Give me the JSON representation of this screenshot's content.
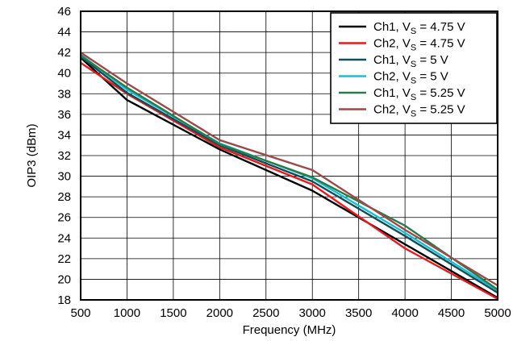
{
  "chart_data": {
    "type": "line",
    "xlabel": "Frequency (MHz)",
    "ylabel": "OIP3 (dBm)",
    "xlim": [
      500,
      5000
    ],
    "ylim": [
      18,
      46
    ],
    "x_ticks": [
      500,
      1000,
      1500,
      2000,
      2500,
      3000,
      3500,
      4000,
      4500,
      5000
    ],
    "y_ticks": [
      18,
      20,
      22,
      24,
      26,
      28,
      30,
      32,
      34,
      36,
      38,
      40,
      42,
      44,
      46
    ],
    "grid": true,
    "legend_position": "top-right",
    "x": [
      500,
      1000,
      2000,
      3000,
      4000,
      5000
    ],
    "series": [
      {
        "name": "Ch1, V",
        "subscript": "S",
        "suffix": " = 4.75 V",
        "color": "#000000",
        "values": [
          41.5,
          37.4,
          32.6,
          28.6,
          23.4,
          18.2
        ]
      },
      {
        "name": "Ch2, V",
        "subscript": "S",
        "suffix": " = 4.75 V",
        "color": "#e8191c",
        "values": [
          41.0,
          38.0,
          32.8,
          29.2,
          23.0,
          18.1
        ]
      },
      {
        "name": "Ch1, V",
        "subscript": "S",
        "suffix": " = 5 V",
        "color": "#0d4f5c",
        "values": [
          41.6,
          38.1,
          33.0,
          29.5,
          24.2,
          18.7
        ]
      },
      {
        "name": "Ch2, V",
        "subscript": "S",
        "suffix": " = 5 V",
        "color": "#19bed1",
        "values": [
          41.8,
          38.4,
          33.2,
          29.8,
          24.5,
          18.9
        ]
      },
      {
        "name": "Ch1, V",
        "subscript": "S",
        "suffix": " = 5.25 V",
        "color": "#2c7a48",
        "values": [
          41.7,
          38.6,
          33.1,
          29.9,
          25.2,
          19.0
        ]
      },
      {
        "name": "Ch2, V",
        "subscript": "S",
        "suffix": " = 5.25 V",
        "color": "#9b4a4a",
        "values": [
          42.0,
          39.0,
          33.5,
          30.6,
          24.8,
          19.4
        ]
      }
    ]
  }
}
